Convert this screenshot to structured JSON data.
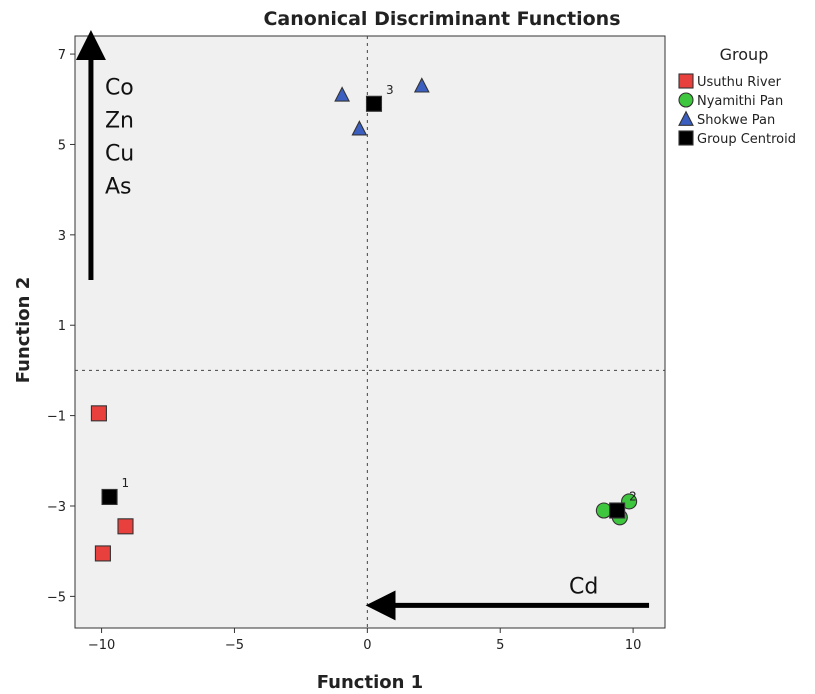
{
  "chart_data": {
    "type": "scatter",
    "title": "Canonical Discriminant Functions",
    "xlabel": "Function 1",
    "ylabel": "Function 2",
    "xlim": [
      -11.0,
      11.2
    ],
    "ylim": [
      -5.7,
      7.4
    ],
    "xticks": [
      -10,
      -5,
      0,
      5,
      10
    ],
    "yticks": [
      -5,
      -3,
      -1,
      1,
      3,
      5,
      7
    ],
    "reference_lines": {
      "x": 0,
      "y": 0,
      "style": "dotted"
    },
    "legend": {
      "title": "Group",
      "placement": "right",
      "entries": [
        "Usuthu River",
        "Nyamithi Pan",
        "Shokwe Pan",
        "Group Centroid"
      ]
    },
    "series": [
      {
        "name": "Usuthu River",
        "marker": "square",
        "color": "#e8403c",
        "points": [
          [
            -10.1,
            -0.95
          ],
          [
            -9.1,
            -3.45
          ],
          [
            -9.95,
            -4.05
          ]
        ]
      },
      {
        "name": "Nyamithi Pan",
        "marker": "circle",
        "color": "#3ec63e",
        "points": [
          [
            8.9,
            -3.1
          ],
          [
            9.5,
            -3.25
          ],
          [
            9.85,
            -2.9
          ]
        ]
      },
      {
        "name": "Shokwe Pan",
        "marker": "triangle",
        "color": "#3b5fc0",
        "points": [
          [
            -0.95,
            6.1
          ],
          [
            -0.3,
            5.35
          ],
          [
            2.05,
            6.3
          ]
        ]
      },
      {
        "name": "Group Centroid",
        "marker": "square",
        "color": "#000000",
        "points": [
          [
            -9.7,
            -2.8
          ],
          [
            9.4,
            -3.1
          ],
          [
            0.25,
            5.9
          ]
        ],
        "labels": [
          "1",
          "2",
          "3"
        ]
      }
    ],
    "annotations": [
      {
        "type": "arrow",
        "from": [
          -10.4,
          2.0
        ],
        "to": [
          -10.4,
          7.2
        ],
        "labels": [
          "Co",
          "Zn",
          "Cu",
          "As"
        ]
      },
      {
        "type": "arrow",
        "from": [
          10.6,
          -5.2
        ],
        "to": [
          0.5,
          -5.2
        ],
        "labels": [
          "Cd"
        ]
      }
    ]
  }
}
